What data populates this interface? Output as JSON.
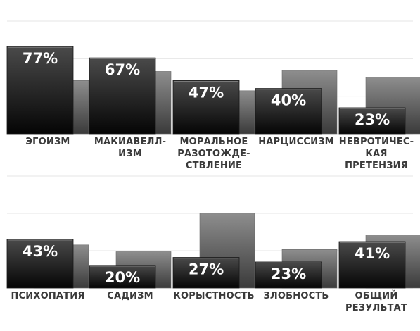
{
  "chart_data": [
    {
      "type": "bar",
      "categories": [
        "ЭГОИЗМ",
        "МАКИАВЕЛЛ-\nИЗМ",
        "МОРАЛЬНОЕ\nРАЗОТОЖДЕ-\nСТВЛЕНИЕ",
        "НАРЦИССИЗМ",
        "НЕВРОТИЧЕС-\nКАЯ ПРЕТЕНЗИЯ"
      ],
      "series": [
        {
          "values": [
            77,
            67,
            47,
            40,
            23
          ]
        },
        {
          "values": [
            47,
            55,
            38,
            56,
            50
          ]
        }
      ],
      "data_labels": [
        "77%",
        "67%",
        "47%",
        "40%",
        "23%"
      ],
      "ylim": [
        0,
        100
      ],
      "grid": true
    },
    {
      "type": "bar",
      "categories": [
        "ПСИХОПАТИЯ",
        "САДИЗМ",
        "КОРЫСТНОСТЬ",
        "ЗЛОБНОСТЬ",
        "ОБЩИЙ\nРЕЗУЛЬТАТ"
      ],
      "series": [
        {
          "values": [
            43,
            20,
            27,
            23,
            41
          ]
        },
        {
          "values": [
            38,
            32,
            66,
            34,
            47
          ]
        }
      ],
      "data_labels": [
        "43%",
        "20%",
        "27%",
        "23%",
        "41%"
      ],
      "ylim": [
        0,
        100
      ],
      "grid": true
    }
  ]
}
